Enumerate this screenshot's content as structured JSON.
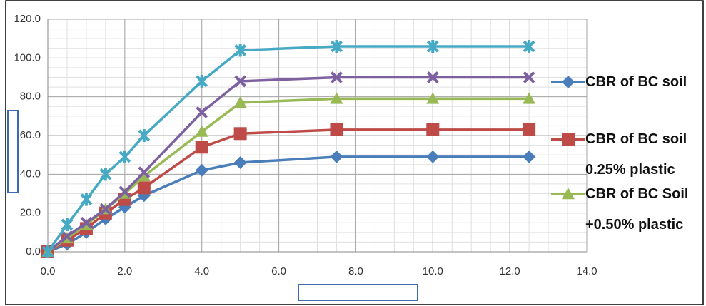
{
  "chart_data": {
    "type": "line",
    "x": [
      0,
      0.5,
      1,
      1.5,
      2,
      2.5,
      4,
      5,
      7.5,
      10,
      12.5
    ],
    "series": [
      {
        "name": "CBR of BC soil",
        "color": "#4a7ebb",
        "marker": "diamond",
        "values": [
          0,
          4,
          10,
          17,
          23,
          29,
          42,
          46,
          49,
          49,
          49
        ]
      },
      {
        "name": "CBR of BC soil 0.25% plastic",
        "color": "#be4b48",
        "marker": "square",
        "values": [
          0,
          6,
          12,
          20,
          27,
          33,
          54,
          61,
          63,
          63,
          63
        ]
      },
      {
        "name": "CBR of BC Soil +0.50% plastic",
        "color": "#98b954",
        "marker": "triangle",
        "values": [
          0,
          7,
          14,
          22,
          30,
          39,
          62,
          77,
          79,
          79,
          79
        ]
      },
      {
        "color": "#7d60a0",
        "marker": "x",
        "values": [
          0,
          8,
          15,
          22,
          31,
          41,
          72,
          88,
          90,
          90,
          90
        ]
      },
      {
        "color": "#46aac5",
        "marker": "star",
        "values": [
          0,
          14,
          27,
          40,
          49,
          60,
          88,
          104,
          106,
          106,
          106
        ]
      }
    ],
    "xlim": [
      0,
      14
    ],
    "ylim": [
      0,
      120
    ],
    "xticks": [
      {
        "value": 0,
        "label": "0.0"
      },
      {
        "value": 2,
        "label": "2.0"
      },
      {
        "value": 4,
        "label": "4.0"
      },
      {
        "value": 6,
        "label": "6.0"
      },
      {
        "value": 8,
        "label": "8.0"
      },
      {
        "value": 10,
        "label": "10.0"
      },
      {
        "value": 12,
        "label": "12.0"
      },
      {
        "value": 14,
        "label": "14.0"
      }
    ],
    "yticks": [
      {
        "value": 0,
        "label": "0.0"
      },
      {
        "value": 20,
        "label": "20.0"
      },
      {
        "value": 40,
        "label": "40.0"
      },
      {
        "value": 60,
        "label": "60.0"
      },
      {
        "value": 80,
        "label": "80.0"
      },
      {
        "value": 100,
        "label": "100.0"
      },
      {
        "value": 120,
        "label": "120.0"
      }
    ],
    "grid": true
  }
}
